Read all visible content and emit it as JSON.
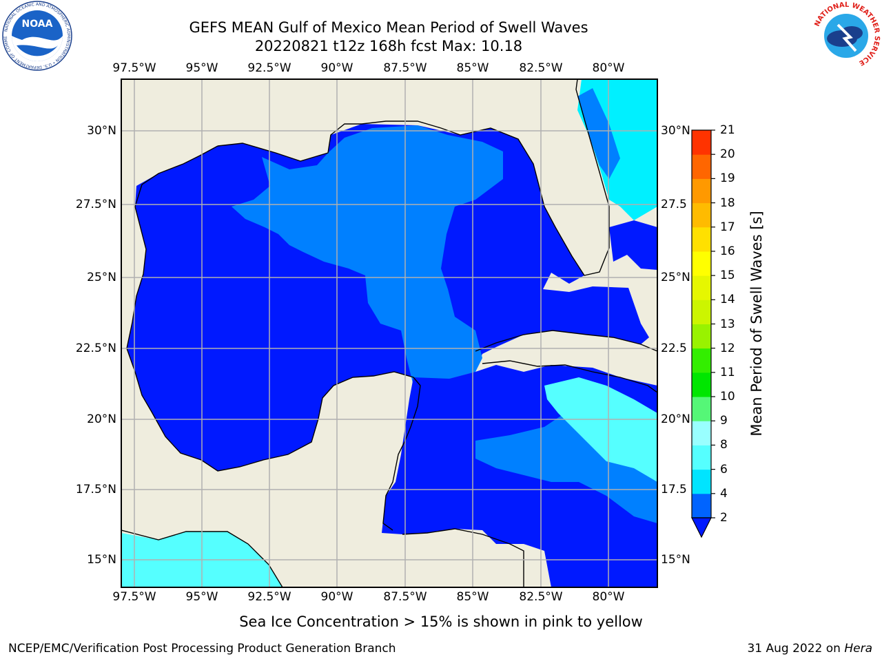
{
  "header": {
    "title_line1": "GEFS MEAN Gulf of Mexico Mean Period of Swell Waves",
    "title_line2": "20220821 t12z 168h fcst   Max: 10.18"
  },
  "logos": {
    "left": "NOAA",
    "left_ring_text": "NATIONAL OCEANIC AND ATMOSPHERIC ADMINISTRATION • U.S. DEPARTMENT OF COMMERCE",
    "right_ring_text": "NATIONAL WEATHER SERVICE"
  },
  "map": {
    "lon_labels": [
      "97.5°W",
      "95°W",
      "92.5°W",
      "90°W",
      "87.5°W",
      "85°W",
      "82.5°W",
      "80°W"
    ],
    "lat_labels_left": [
      "30°N",
      "27.5°N",
      "25°N",
      "22.5°N",
      "20°N",
      "17.5°N",
      "15°N"
    ],
    "lat_labels_right": [
      "30°N",
      "27.5",
      "25°N",
      "22.5",
      "20°N",
      "17.5",
      "15°N"
    ],
    "colors": {
      "land": "#efedde",
      "level_2_4": "#0019ff",
      "level_4_6": "#0080ff",
      "level_6_8": "#00f0ff",
      "level_8_9": "#55ffff",
      "grid": "#b0b0b0"
    }
  },
  "colorbar": {
    "title": "Mean Period of Swell Waves [s]",
    "tick_labels": [
      "2",
      "4",
      "6",
      "8",
      "9",
      "10",
      "11",
      "12",
      "13",
      "14",
      "15",
      "16",
      "17",
      "18",
      "19",
      "20",
      "21"
    ],
    "colors": [
      "#0064ff",
      "#00e4ff",
      "#55ffff",
      "#99ffff",
      "#55f777",
      "#00e600",
      "#33ee00",
      "#99f200",
      "#ccf500",
      "#e6f700",
      "#ffff00",
      "#ffe000",
      "#ffbb00",
      "#ff9900",
      "#ff6600",
      "#ff3300",
      "#ff0000"
    ]
  },
  "footnote": "Sea Ice Concentration > 15% is shown in pink to yellow",
  "credits": {
    "left": "NCEP/EMC/Verification Post Processing Product Generation Branch",
    "right_date": "31 Aug 2022 on ",
    "right_machine": "Hera"
  }
}
